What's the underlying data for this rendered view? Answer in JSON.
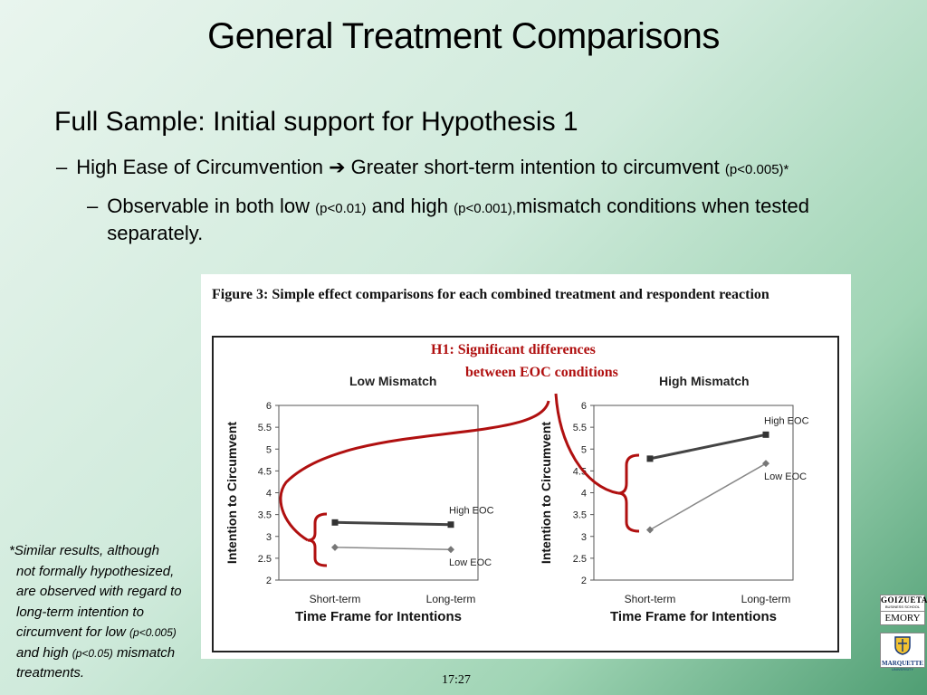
{
  "slide": {
    "title": "General Treatment Comparisons",
    "bullet1": "Full Sample: Initial support for Hypothesis 1",
    "bullet2": {
      "dash": "–",
      "part1": "High Ease of Circumvention",
      "arrow": "➔",
      "part2": "Greater short-term intention to circumvent",
      "p": "(p<0.005)*"
    },
    "bullet3": {
      "dash": "–",
      "part1": "Observable in both low",
      "p1": "(p<0.01)",
      "part2": "and high",
      "p2": "(p<0.001),",
      "part3": "mismatch conditions when tested separately."
    },
    "footnote": {
      "line1": "*Similar results, although",
      "line2": "not formally hypothesized,",
      "line3": "are observed with regard to",
      "line4": "long-term intention to",
      "line5a": "circumvent for low",
      "line5p": "(p<0.005)",
      "line6a": "and high",
      "line6p": "(p<0.05)",
      "line6b": "mismatch",
      "line7": "treatments."
    },
    "slide_number": "17:27",
    "logos": {
      "goizueta_top": "GOIZUETA",
      "goizueta_sub": "BUSINESS SCHOOL",
      "emory": "EMORY",
      "marquette": "MARQUETTE",
      "marquette_sub": "UNIVERSITY"
    }
  },
  "figure": {
    "title": "Figure 3: Simple effect comparisons for each combined treatment and respondent reaction",
    "annotation_line1": "H1: Significant differences",
    "annotation_line2": "between EOC conditions"
  },
  "colors": {
    "high_series": "#444444",
    "low_series": "#888888",
    "annotation": "#b01010"
  },
  "chart_data": [
    {
      "type": "line",
      "title": "Low Mismatch",
      "xlabel": "Time Frame for Intentions",
      "ylabel": "Intention to Circumvent",
      "categories": [
        "Short-term",
        "Long-term"
      ],
      "ylim": [
        2,
        6
      ],
      "yticks": [
        "2",
        "2.5",
        "3",
        "3.5",
        "4",
        "4.5",
        "5",
        "5.5",
        "6"
      ],
      "series": [
        {
          "name": "High EOC",
          "values": [
            3.32,
            3.27
          ],
          "marker": "square"
        },
        {
          "name": "Low EOC",
          "values": [
            2.75,
            2.7
          ],
          "marker": "diamond"
        }
      ]
    },
    {
      "type": "line",
      "title": "High Mismatch",
      "xlabel": "Time Frame for Intentions",
      "ylabel": "Intention to Circumvent",
      "categories": [
        "Short-term",
        "Long-term"
      ],
      "ylim": [
        2,
        6
      ],
      "yticks": [
        "2",
        "2.5",
        "3",
        "3.5",
        "4",
        "4.5",
        "5",
        "5.5",
        "6"
      ],
      "series": [
        {
          "name": "High EOC",
          "values": [
            4.78,
            5.33
          ],
          "marker": "square"
        },
        {
          "name": "Low EOC",
          "values": [
            3.15,
            4.67
          ],
          "marker": "diamond"
        }
      ]
    }
  ]
}
